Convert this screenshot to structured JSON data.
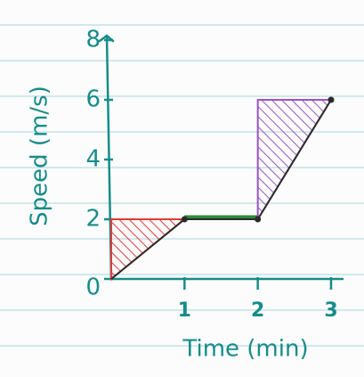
{
  "chart_data": {
    "type": "line",
    "x_label": "Time (min)",
    "y_label": "Speed (m/s)",
    "x": [
      0,
      1,
      2,
      3
    ],
    "series": [
      {
        "color": "#2b2b2b",
        "values": [
          0,
          2,
          2,
          6
        ]
      }
    ],
    "xlim": [
      0,
      3
    ],
    "ylim": [
      0,
      8
    ],
    "xticks": [
      1,
      2,
      3
    ],
    "yticks": [
      0,
      2,
      4,
      6,
      8
    ]
  }
}
